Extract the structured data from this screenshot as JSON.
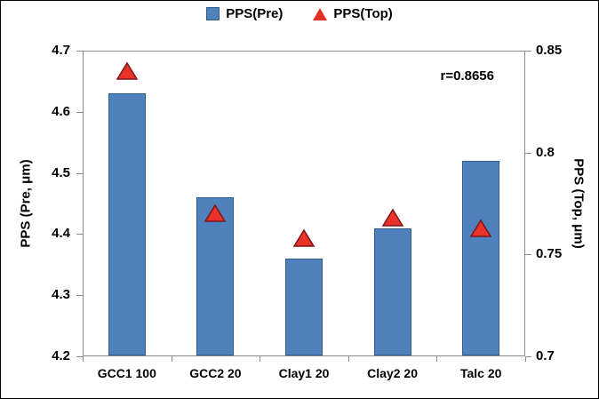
{
  "legend": {
    "pre": "PPS(Pre)",
    "top": "PPS(Top)"
  },
  "annotation": "r=0.8656",
  "colors": {
    "bar_fill": "#4F81BD",
    "bar_border": "#2F5C8F",
    "triangle_fill": "#E8322A",
    "triangle_border": "#7F1416",
    "axis_line": "#8a8a8a"
  },
  "chart_data": {
    "type": "combo",
    "categories": [
      "GCC1 100",
      "GCC2 20",
      "Clay1 20",
      "Clay2 20",
      "Talc 20"
    ],
    "series": [
      {
        "name": "PPS(Pre)",
        "type": "bar",
        "axis": "left",
        "values": [
          4.63,
          4.46,
          4.36,
          4.41,
          4.52
        ]
      },
      {
        "name": "PPS(Top)",
        "type": "scatter-triangle",
        "axis": "right",
        "values": [
          0.84,
          0.77,
          0.758,
          0.768,
          0.763
        ]
      }
    ],
    "left_axis": {
      "label": "PPS (Pre, μm)",
      "min": 4.2,
      "max": 4.7,
      "ticks": [
        "4.2",
        "4.3",
        "4.4",
        "4.5",
        "4.6",
        "4.7"
      ]
    },
    "right_axis": {
      "label": "PPS (Top, μm)",
      "min": 0.7,
      "max": 0.85,
      "ticks": [
        "0.7",
        "0.75",
        "0.8",
        "0.85"
      ]
    },
    "annotation": "r=0.8656",
    "legend_position": "top",
    "grid": false
  }
}
